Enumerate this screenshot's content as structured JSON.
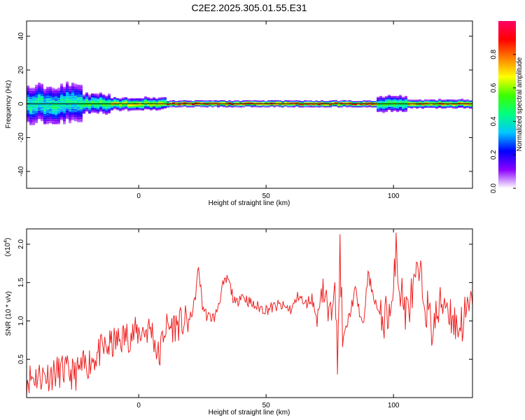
{
  "title": "C2E2.2025.305.01.55.E31",
  "chart_data": [
    {
      "type": "heatmap",
      "name": "spectrogram",
      "xlabel": "Height of straight line (km)",
      "ylabel": "Frequency (Hz)",
      "xlim": [
        -44,
        131
      ],
      "ylim": [
        -50,
        49
      ],
      "xticks": [
        0,
        50,
        100
      ],
      "yticks": [
        -40,
        -20,
        0,
        20,
        40
      ],
      "baseline_hz": 0,
      "ridge_center_hz": 0,
      "segments": [
        {
          "x0": -44,
          "x1": -23,
          "spread_hz": 10,
          "peak": 0.45
        },
        {
          "x0": -23,
          "x1": -12,
          "spread_hz": 5,
          "peak": 0.55
        },
        {
          "x0": -12,
          "x1": 10,
          "spread_hz": 3,
          "peak": 0.7
        },
        {
          "x0": 10,
          "x1": 93,
          "spread_hz": 1.5,
          "peak": 0.95
        },
        {
          "x0": 93,
          "x1": 105,
          "spread_hz": 4,
          "peak": 0.55
        },
        {
          "x0": 105,
          "x1": 131,
          "spread_hz": 2,
          "peak": 0.8
        }
      ],
      "colorbar": {
        "label": "Normalized spectral amplitude",
        "ticks": [
          0.0,
          0.2,
          0.4,
          0.6,
          0.8
        ],
        "colors": [
          "#ffffff",
          "#8a00ff",
          "#0000ff",
          "#00c8ff",
          "#00ff7f",
          "#3cff00",
          "#ffff00",
          "#ff8000",
          "#ff0000",
          "#ff0066"
        ]
      }
    },
    {
      "type": "line",
      "name": "snr",
      "xlabel": "Height of straight line (km)",
      "ylabel": "SNR (10 * v/v)",
      "y_multiplier": "(x10",
      "y_multiplier_exp": "4",
      "y_multiplier_close": ")",
      "xlim": [
        -44,
        131
      ],
      "ylim": [
        0,
        2.2
      ],
      "xticks": [
        0,
        50,
        100
      ],
      "yticks": [
        0.5,
        1.0,
        1.5,
        2.0
      ],
      "ytick_labels": [
        "0.5",
        "1.0",
        "1.5",
        "2.0"
      ],
      "color": "#ee2222",
      "series": [
        {
          "name": "SNR",
          "x": [
            -44,
            -40,
            -35,
            -30,
            -25,
            -20,
            -15,
            -10,
            -5,
            0,
            5,
            8,
            10,
            15,
            20,
            22,
            23.5,
            25,
            27,
            30,
            33,
            35,
            38,
            40,
            45,
            50,
            55,
            60,
            63,
            65,
            68,
            70,
            72,
            75,
            77,
            78,
            79,
            80,
            85,
            88,
            90,
            95,
            100,
            101,
            102,
            105,
            110,
            115,
            120,
            125,
            131
          ],
          "y": [
            0.25,
            0.28,
            0.3,
            0.35,
            0.3,
            0.45,
            0.6,
            0.7,
            0.8,
            0.85,
            0.9,
            0.5,
            0.9,
            0.95,
            1.0,
            1.25,
            1.7,
            1.2,
            1.05,
            1.05,
            1.45,
            1.55,
            1.2,
            1.35,
            1.2,
            1.15,
            1.2,
            1.15,
            1.35,
            1.2,
            1.3,
            1.0,
            1.5,
            0.95,
            1.8,
            0.2,
            2.05,
            0.7,
            1.4,
            0.9,
            1.6,
            1.0,
            1.2,
            2.2,
            1.5,
            1.1,
            1.6,
            0.9,
            1.3,
            0.9,
            1.2
          ]
        }
      ]
    }
  ]
}
